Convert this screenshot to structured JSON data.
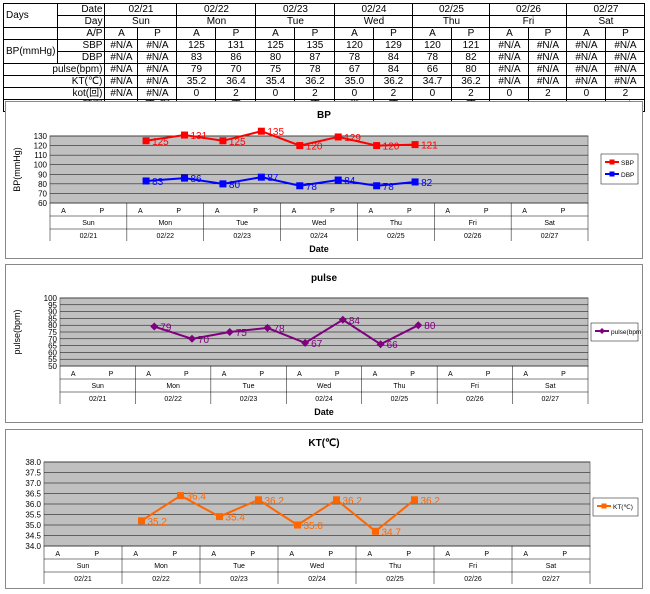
{
  "table": {
    "row_labels": {
      "days": "Days",
      "date": "Date",
      "day": "Day",
      "ap": "A/P",
      "bp": "BP(mmHg)",
      "sbp": "SBP",
      "dbp": "DBP",
      "pulse": "pulse(bpm)",
      "kt": "KT(℃)",
      "kot": "kot(回)",
      "med": "頓服"
    },
    "dates": [
      "02/21",
      "02/22",
      "02/23",
      "02/24",
      "02/25",
      "02/26",
      "02/27"
    ],
    "days": [
      "Sun",
      "Mon",
      "Tue",
      "Wed",
      "Thu",
      "Fri",
      "Sat"
    ],
    "ap": [
      "A",
      "P",
      "A",
      "P",
      "A",
      "P",
      "A",
      "P",
      "A",
      "P",
      "A",
      "P",
      "A",
      "P"
    ],
    "sbp": [
      "#N/A",
      "#N/A",
      "125",
      "131",
      "125",
      "135",
      "120",
      "129",
      "120",
      "121",
      "#N/A",
      "#N/A",
      "#N/A",
      "#N/A"
    ],
    "dbp": [
      "#N/A",
      "#N/A",
      "83",
      "86",
      "80",
      "87",
      "78",
      "84",
      "78",
      "82",
      "#N/A",
      "#N/A",
      "#N/A",
      "#N/A"
    ],
    "pulse": [
      "#N/A",
      "#N/A",
      "79",
      "70",
      "75",
      "78",
      "67",
      "84",
      "66",
      "80",
      "#N/A",
      "#N/A",
      "#N/A",
      "#N/A"
    ],
    "kt": [
      "#N/A",
      "#N/A",
      "35.2",
      "36.4",
      "35.4",
      "36.2",
      "35.0",
      "36.2",
      "34.7",
      "36.2",
      "#N/A",
      "#N/A",
      "#N/A",
      "#N/A"
    ],
    "kot": [
      "#N/A",
      "#N/A",
      "0",
      "2",
      "0",
      "2",
      "0",
      "2",
      "0",
      "2",
      "0",
      "2",
      "0",
      "2"
    ],
    "med": [
      "×",
      "不･眠",
      "×",
      "不",
      "×",
      "不",
      "覚",
      "不",
      "×",
      "不",
      "×",
      "×",
      "×",
      "#N/A"
    ]
  },
  "chart_data": [
    {
      "type": "line",
      "title": "BP",
      "xlabel": "Date",
      "ylabel": "BP(mmHg)",
      "ylim": [
        60,
        130
      ],
      "yticks": [
        60,
        70,
        80,
        90,
        100,
        110,
        120,
        130
      ],
      "x_ap": [
        "A",
        "P",
        "A",
        "P",
        "A",
        "P",
        "A",
        "P",
        "A",
        "P",
        "A",
        "P",
        "A",
        "P"
      ],
      "x_days": [
        "Sun",
        "Mon",
        "Tue",
        "Wed",
        "Thu",
        "Fri",
        "Sat"
      ],
      "x_dates": [
        "02/21",
        "02/22",
        "02/23",
        "02/24",
        "02/25",
        "02/26",
        "02/27"
      ],
      "legend": "right",
      "grid": true,
      "series": [
        {
          "name": "SBP",
          "color": "#ff0000",
          "marker": "square",
          "values": [
            null,
            null,
            125,
            131,
            125,
            135,
            120,
            129,
            120,
            121,
            null,
            null,
            null,
            null
          ]
        },
        {
          "name": "DBP",
          "color": "#0000ff",
          "marker": "square",
          "values": [
            null,
            null,
            83,
            86,
            80,
            87,
            78,
            84,
            78,
            82,
            null,
            null,
            null,
            null
          ]
        }
      ]
    },
    {
      "type": "line",
      "title": "pulse",
      "xlabel": "Date",
      "ylabel": "pulse(bpm)",
      "ylim": [
        50,
        100
      ],
      "yticks": [
        50,
        55,
        60,
        65,
        70,
        75,
        80,
        85,
        90,
        95,
        100
      ],
      "x_ap": [
        "A",
        "P",
        "A",
        "P",
        "A",
        "P",
        "A",
        "P",
        "A",
        "P",
        "A",
        "P",
        "A",
        "P"
      ],
      "x_days": [
        "Sun",
        "Mon",
        "Tue",
        "Wed",
        "Thu",
        "Fri",
        "Sat"
      ],
      "x_dates": [
        "02/21",
        "02/22",
        "02/23",
        "02/24",
        "02/25",
        "02/26",
        "02/27"
      ],
      "legend": "right",
      "grid": true,
      "series": [
        {
          "name": "pulse(bpm)",
          "color": "#800080",
          "marker": "diamond",
          "values": [
            null,
            null,
            79,
            70,
            75,
            78,
            67,
            84,
            66,
            80,
            null,
            null,
            null,
            null
          ]
        }
      ]
    },
    {
      "type": "line",
      "title": "KT(℃)",
      "xlabel": "",
      "ylabel": "",
      "ylim": [
        34.0,
        38.0
      ],
      "yticks": [
        34.0,
        34.5,
        35.0,
        35.5,
        36.0,
        36.5,
        37.0,
        37.5,
        38.0
      ],
      "x_ap": [
        "A",
        "P",
        "A",
        "P",
        "A",
        "P",
        "A",
        "P",
        "A",
        "P",
        "A",
        "P",
        "A",
        "P"
      ],
      "x_days": [
        "Sun",
        "Mon",
        "Tue",
        "Wed",
        "Thu",
        "Fri",
        "Sat"
      ],
      "x_dates": [
        "02/21",
        "02/22",
        "02/23",
        "02/24",
        "02/25",
        "02/26",
        "02/27"
      ],
      "legend": "right",
      "grid": true,
      "series": [
        {
          "name": "KT(℃)",
          "color": "#ff6600",
          "marker": "square",
          "values": [
            null,
            null,
            35.2,
            36.4,
            35.4,
            36.2,
            35.0,
            36.2,
            34.7,
            36.2,
            null,
            null,
            null,
            null
          ]
        }
      ]
    }
  ]
}
